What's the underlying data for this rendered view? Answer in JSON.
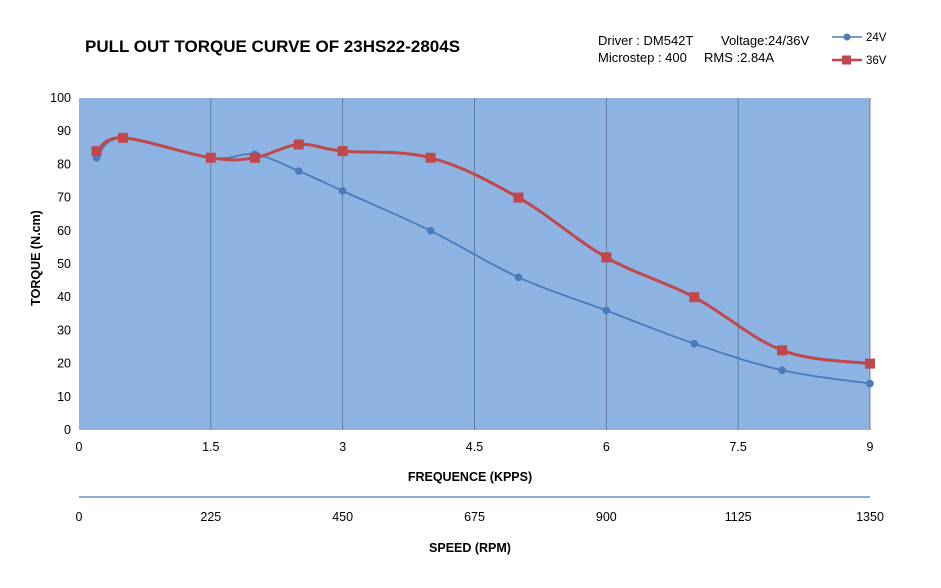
{
  "chart_data": {
    "type": "line",
    "title": "PULL OUT TORQUE CURVE OF 23HS22-2804S",
    "info": {
      "driver": "Driver : DM542T",
      "voltage": "Voltage:24/36V",
      "microstep": "Microstep : 400",
      "rms": "RMS :2.84A"
    },
    "xlabel": "FREQUENCE (KPPS)",
    "ylabel": "TORQUE (N.cm)",
    "xlim": [
      0,
      9
    ],
    "ylim": [
      0,
      100
    ],
    "x_ticks": [
      "0",
      "1.5",
      "3",
      "4.5",
      "6",
      "7.5",
      "9"
    ],
    "y_ticks": [
      "0",
      "10",
      "20",
      "30",
      "40",
      "50",
      "60",
      "70",
      "80",
      "90",
      "100"
    ],
    "secondary_axis": {
      "label": "SPEED (RPM)",
      "ticks": [
        "0",
        "225",
        "450",
        "675",
        "900",
        "1125",
        "1350"
      ]
    },
    "grid": "vertical",
    "legend_position": "top-right",
    "series": [
      {
        "name": "24V",
        "color": "#4a7ab8",
        "marker": "circle",
        "x": [
          0.2,
          0.5,
          1.5,
          2.0,
          2.5,
          3.0,
          4.0,
          5.0,
          6.0,
          7.0,
          8.0,
          9.0
        ],
        "y": [
          82,
          88,
          82,
          83,
          78,
          72,
          60,
          46,
          36,
          26,
          18,
          14
        ]
      },
      {
        "name": "36V",
        "color": "#c0474a",
        "marker": "square",
        "x": [
          0.2,
          0.5,
          1.5,
          2.0,
          2.5,
          3.0,
          4.0,
          5.0,
          6.0,
          7.0,
          8.0,
          9.0
        ],
        "y": [
          84,
          88,
          82,
          82,
          86,
          84,
          82,
          70,
          52,
          40,
          24,
          20
        ]
      }
    ],
    "colors": {
      "plot_bg": "#8db3e2",
      "grid": "#5a6f8a",
      "axis_line": "#6f8fc0"
    }
  }
}
